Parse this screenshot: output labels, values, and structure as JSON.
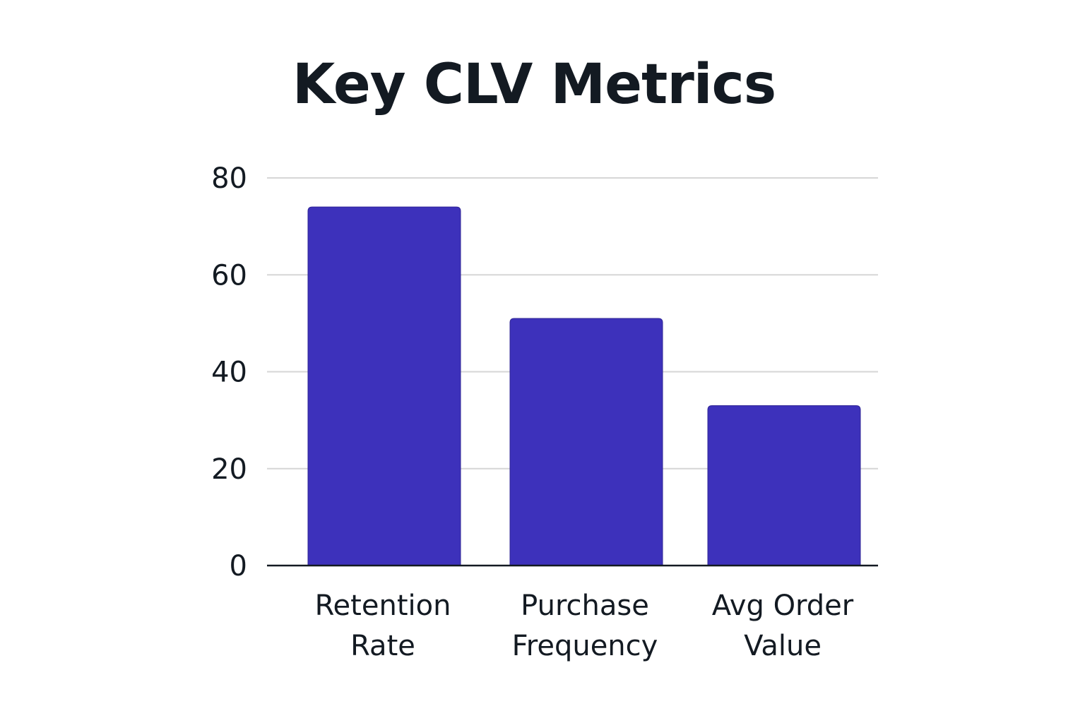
{
  "colors": {
    "bar": "#3d31bb",
    "grid": "#d6d6d6",
    "axis": "#131a22",
    "text": "#131a22"
  },
  "chart_data": {
    "type": "bar",
    "title": "Key CLV Metrics",
    "xlabel": "",
    "ylabel": "",
    "ylim": [
      0,
      80
    ],
    "yticks": [
      "0",
      "20",
      "40",
      "60",
      "80"
    ],
    "grid": true,
    "legend": "none",
    "categories": [
      [
        "Retention",
        "Rate"
      ],
      [
        "Purchase",
        "Frequency"
      ],
      [
        "Avg Order",
        "Value"
      ]
    ],
    "values": [
      74,
      51,
      33
    ]
  }
}
